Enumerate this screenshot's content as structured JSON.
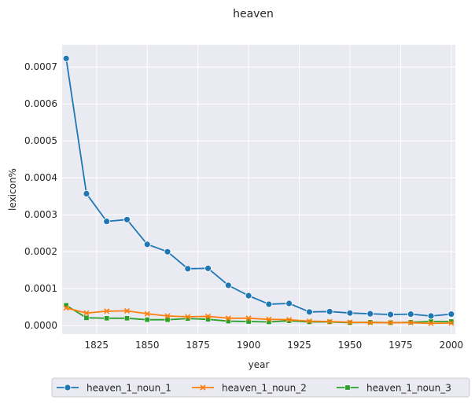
{
  "chart_data": {
    "type": "line",
    "title": "heaven",
    "xlabel": "year",
    "ylabel": "lexicon%",
    "xlim": [
      1808,
      2002
    ],
    "ylim": [
      -2.3e-05,
      0.00076
    ],
    "xticks": [
      1825,
      1850,
      1875,
      1900,
      1925,
      1950,
      1975,
      2000
    ],
    "xtick_labels": [
      "1825",
      "1850",
      "1875",
      "1900",
      "1925",
      "1950",
      "1975",
      "2000"
    ],
    "yticks": [
      0,
      0.0001,
      0.0002,
      0.0003,
      0.0004,
      0.0005,
      0.0006,
      0.0007
    ],
    "ytick_labels": [
      "0.0000",
      "0.0001",
      "0.0002",
      "0.0003",
      "0.0004",
      "0.0005",
      "0.0006",
      "0.0007"
    ],
    "grid": true,
    "legend_position": "bottom-center",
    "x": [
      1810,
      1820,
      1830,
      1840,
      1850,
      1860,
      1870,
      1880,
      1890,
      1900,
      1910,
      1920,
      1930,
      1940,
      1950,
      1960,
      1970,
      1980,
      1990,
      2000
    ],
    "series": [
      {
        "name": "heaven_1_noun_1",
        "color": "#1f77b4",
        "marker": "circle",
        "values": [
          0.000723,
          0.000357,
          0.000282,
          0.000287,
          0.00022,
          0.0002,
          0.000154,
          0.000155,
          0.000109,
          8.1e-05,
          5.8e-05,
          6e-05,
          3.7e-05,
          3.8e-05,
          3.4e-05,
          3.2e-05,
          3e-05,
          3.1e-05,
          2.6e-05,
          3.1e-05
        ]
      },
      {
        "name": "heaven_1_noun_2",
        "color": "#ff7f0e",
        "marker": "x",
        "values": [
          4.8e-05,
          3.4e-05,
          3.9e-05,
          4e-05,
          3.2e-05,
          2.6e-05,
          2.4e-05,
          2.5e-05,
          2e-05,
          2e-05,
          1.7e-05,
          1.6e-05,
          1.2e-05,
          1.1e-05,
          9e-06,
          8e-06,
          8e-06,
          8e-06,
          6e-06,
          7e-06
        ]
      },
      {
        "name": "heaven_1_noun_3",
        "color": "#2ca02c",
        "marker": "square",
        "values": [
          5.5e-05,
          2.1e-05,
          2e-05,
          2e-05,
          1.6e-05,
          1.6e-05,
          1.9e-05,
          1.7e-05,
          1.2e-05,
          1.1e-05,
          1e-05,
          1.3e-05,
          1e-05,
          1e-05,
          8e-06,
          9e-06,
          8e-06,
          9e-06,
          1.1e-05,
          1.1e-05
        ]
      }
    ]
  }
}
